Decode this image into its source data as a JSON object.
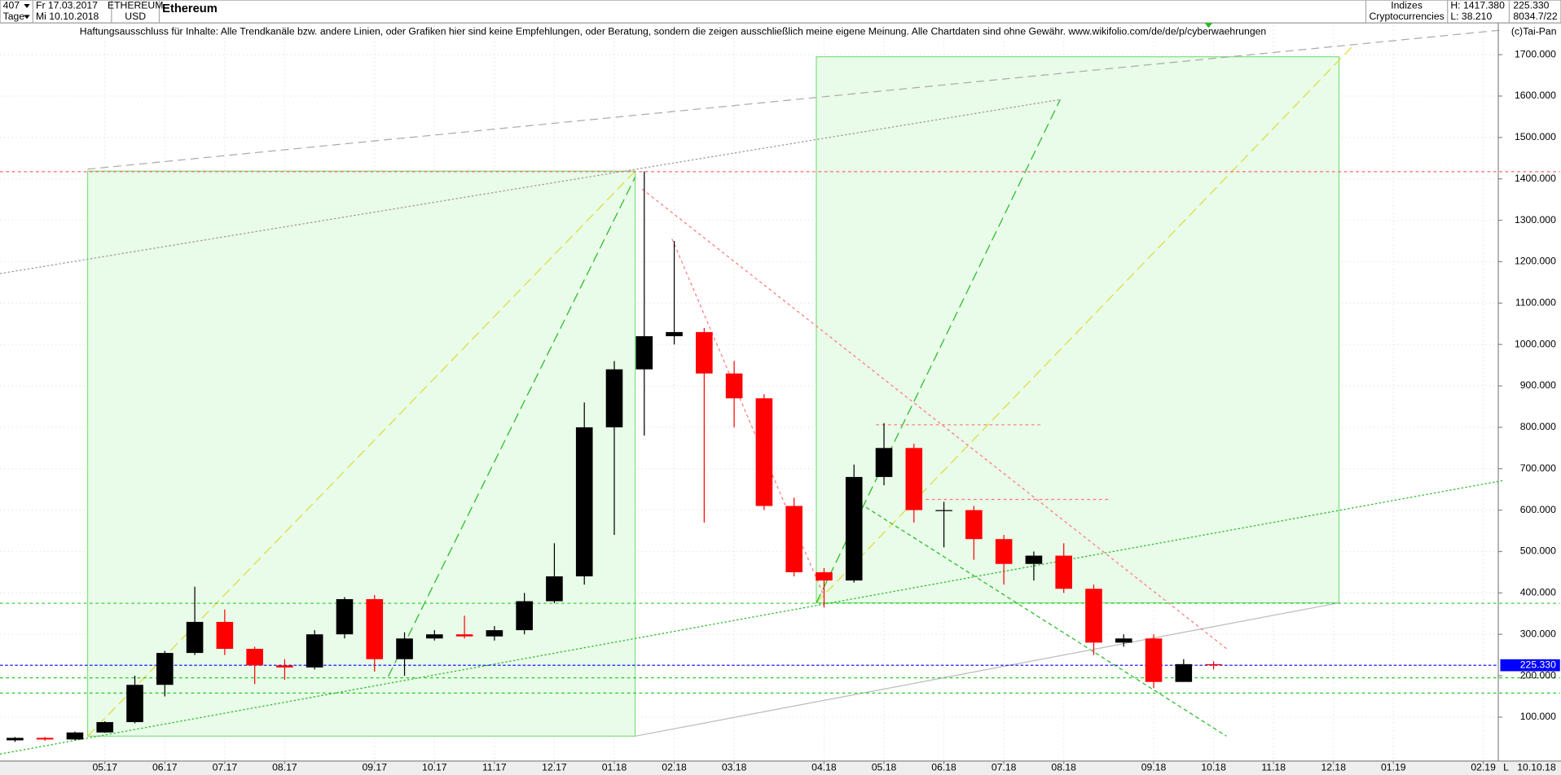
{
  "header": {
    "count": "407",
    "start_date": "Fr 17.03.2017",
    "period": "Tage",
    "end_date": "Mi 10.10.2018",
    "symbol": "ETHEREUM",
    "currency": "USD",
    "name": "Ethereum",
    "group": "Indizes",
    "subgroup": "Cryptocurrencies",
    "high": "H: 1417.380",
    "low": "L: 38.210",
    "last": "225.330",
    "info": "8034.7/22",
    "disclaimer": "Haftungsausschluss für Inhalte: Alle Trendkanäle bzw. andere Linien, oder Grafiken hier sind keine Empfehlungen, oder Beratung, sondern die zeigen ausschließlich meine eigene Meinung. Alle Chartdaten sind ohne Gewähr.  www.wikifolio.com/de/de/p/cyberwaehrungen",
    "copyright": "(c)Tai-Pan",
    "corner": "L",
    "date": "10.10.18"
  },
  "chart_data": {
    "type": "candlestick",
    "up_color": "#000000",
    "down_color": "#ff0000",
    "grid": true,
    "categories": [
      null,
      null,
      null,
      "05.17",
      null,
      "06.17",
      null,
      "07.17",
      null,
      "08.17",
      null,
      null,
      "09.17",
      null,
      "10.17",
      null,
      "11.17",
      null,
      "12.17",
      null,
      "01.18",
      null,
      "02.18",
      null,
      "03.18",
      null,
      null,
      "04.18",
      null,
      "05.18",
      null,
      "06.18",
      null,
      "07.18",
      null,
      "08.18",
      null,
      null,
      "09.18",
      null,
      "10.18",
      null,
      "11.18",
      null,
      "12.18",
      null,
      "01.19",
      null,
      null,
      "02.19"
    ],
    "open": [
      44,
      50,
      46,
      63,
      88,
      178,
      255,
      330,
      265,
      225,
      220,
      300,
      385,
      240,
      290,
      300,
      295,
      310,
      380,
      440,
      800,
      940,
      1020,
      1030,
      930,
      870,
      610,
      450,
      430,
      680,
      750,
      600,
      600,
      530,
      470,
      490,
      410,
      280,
      290,
      185,
      228,
      null,
      null,
      null,
      null,
      null,
      null,
      null,
      null,
      null
    ],
    "high": [
      52,
      52,
      65,
      90,
      200,
      260,
      415,
      360,
      270,
      240,
      310,
      390,
      395,
      305,
      310,
      345,
      320,
      400,
      520,
      860,
      960,
      1418,
      1250,
      1040,
      960,
      880,
      630,
      460,
      710,
      810,
      760,
      620,
      610,
      540,
      500,
      520,
      420,
      300,
      300,
      240,
      235,
      null,
      null,
      null,
      null,
      null,
      null,
      null,
      null,
      null
    ],
    "low": [
      40,
      43,
      45,
      62,
      85,
      150,
      250,
      250,
      180,
      190,
      215,
      290,
      210,
      200,
      285,
      290,
      285,
      300,
      375,
      420,
      540,
      780,
      1000,
      570,
      800,
      600,
      440,
      365,
      425,
      660,
      570,
      510,
      480,
      420,
      430,
      400,
      250,
      270,
      170,
      185,
      215,
      null,
      null,
      null,
      null,
      null,
      null,
      null,
      null,
      null
    ],
    "close": [
      50,
      46,
      63,
      88,
      178,
      255,
      330,
      265,
      225,
      220,
      300,
      385,
      240,
      290,
      300,
      295,
      310,
      380,
      440,
      800,
      940,
      1020,
      1030,
      930,
      870,
      610,
      450,
      430,
      680,
      750,
      600,
      600,
      530,
      470,
      490,
      410,
      280,
      290,
      185,
      228,
      225.33,
      null,
      null,
      null,
      null,
      null,
      null,
      null,
      null,
      null
    ],
    "ylim": [
      -6,
      1779
    ],
    "yticks": [
      {
        "value": 100,
        "label": "100.000"
      },
      {
        "value": 200,
        "label": "200.000"
      },
      {
        "value": 300,
        "label": "300.000"
      },
      {
        "value": 400,
        "label": "400.000"
      },
      {
        "value": 500,
        "label": "500.000"
      },
      {
        "value": 600,
        "label": "600.000"
      },
      {
        "value": 700,
        "label": "700.000"
      },
      {
        "value": 800,
        "label": "800.000"
      },
      {
        "value": 900,
        "label": "900.000"
      },
      {
        "value": 1000,
        "label": "1000.000"
      },
      {
        "value": 1100,
        "label": "1100.000"
      },
      {
        "value": 1200,
        "label": "1200.000"
      },
      {
        "value": 1300,
        "label": "1300.000"
      },
      {
        "value": 1400,
        "label": "1400.000"
      },
      {
        "value": 1500,
        "label": "1500.000"
      },
      {
        "value": 1600,
        "label": "1600.000"
      },
      {
        "value": 1700,
        "label": "1700.000"
      }
    ],
    "price_line": {
      "value": 225.33,
      "label": "225.330",
      "color": "#0000ff"
    },
    "hlines": [
      {
        "value": 1417.38,
        "color": "#ff6666"
      },
      {
        "value": 375,
        "color": "#22cc22"
      },
      {
        "value": 195,
        "color": "#22cc22"
      },
      {
        "value": 158,
        "color": "#22cc22"
      }
    ]
  }
}
